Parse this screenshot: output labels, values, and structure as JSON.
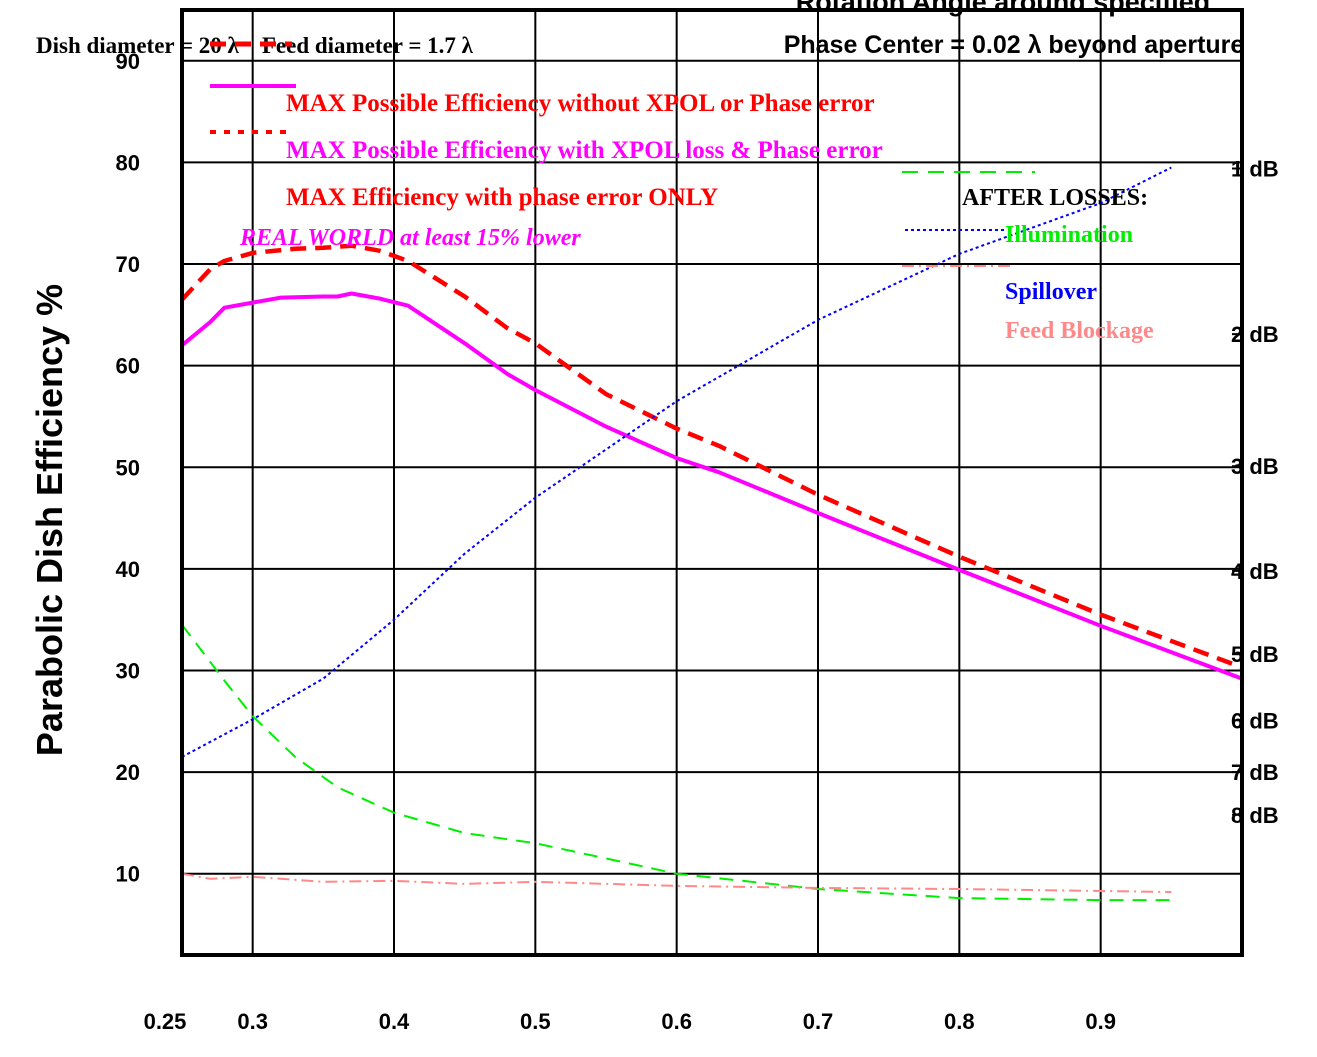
{
  "chart_data": {
    "type": "line",
    "title": "Rotation Angle around specified",
    "title_line2": "Phase Center = 0.02 λ beyond aperture",
    "subtitle": "Dish diameter = 20 λ    Feed diameter = 1.7 λ",
    "ylabel": "Parabolic Dish Efficiency %",
    "xlabel": "",
    "xlim": [
      0.25,
      1.0
    ],
    "ylim": [
      2,
      95
    ],
    "grid": true,
    "x_ticks": [
      0.25,
      0.3,
      0.4,
      0.5,
      0.6,
      0.7,
      0.8,
      0.9
    ],
    "x_tick_labels": [
      "0.25",
      "0.3",
      "0.4",
      "0.5",
      "0.6",
      "0.7",
      "0.8",
      "0.9"
    ],
    "y_ticks": [
      10,
      20,
      30,
      40,
      50,
      60,
      70,
      80,
      90
    ],
    "y_tick_labels": [
      "10",
      "20",
      "30",
      "40",
      "50",
      "60",
      "70",
      "80",
      "90"
    ],
    "right_axis_labels": [
      {
        "label": "1 dB",
        "y": 79.4
      },
      {
        "label": "2 dB",
        "y": 63.1
      },
      {
        "label": "3 dB",
        "y": 50.1
      },
      {
        "label": "4 dB",
        "y": 39.8
      },
      {
        "label": "5 dB",
        "y": 31.6
      },
      {
        "label": "6 dB",
        "y": 25.1
      },
      {
        "label": "7 dB",
        "y": 20.0
      },
      {
        "label": "8 dB",
        "y": 15.8
      }
    ],
    "legend_top": [
      {
        "text": "MAX Possible Efficiency without XPOL or Phase error",
        "color": "#ff0000"
      },
      {
        "text": "MAX Possible Efficiency with XPOL loss & Phase error",
        "color": "#ff00ff"
      },
      {
        "text": "MAX Efficiency with phase error ONLY",
        "color": "#ff0000"
      }
    ],
    "real_world_note": "REAL WORLD at least 15% lower",
    "losses_heading": "AFTER LOSSES:",
    "losses_legend": [
      {
        "text": "Illumination",
        "color": "#00ee00"
      },
      {
        "text": "Spillover",
        "color": "#0000ff"
      },
      {
        "text": "Feed Blockage",
        "color": "#ff8888"
      }
    ],
    "series": [
      {
        "key": "phase_only",
        "color": "#ff0000",
        "dash": "16,9",
        "width": 4.5,
        "x": [
          0.25,
          0.27,
          0.28,
          0.3,
          0.33,
          0.35,
          0.37,
          0.39,
          0.41,
          0.45,
          0.48,
          0.5,
          0.55,
          0.6,
          0.63,
          0.7,
          0.8,
          0.9,
          1.0
        ],
        "y": [
          66.5,
          69.5,
          70.3,
          71.1,
          71.5,
          71.6,
          71.8,
          71.3,
          70.3,
          66.8,
          63.7,
          62.2,
          57.2,
          53.8,
          52.1,
          47.3,
          41.2,
          35.5,
          30.3
        ]
      },
      {
        "key": "xpol_phase",
        "color": "#ff00ff",
        "dash": "",
        "width": 4,
        "x": [
          0.25,
          0.27,
          0.28,
          0.3,
          0.32,
          0.35,
          0.36,
          0.37,
          0.39,
          0.41,
          0.45,
          0.48,
          0.5,
          0.55,
          0.6,
          0.63,
          0.7,
          0.8,
          0.9,
          1.0
        ],
        "y": [
          62.0,
          64.3,
          65.7,
          66.2,
          66.7,
          66.8,
          66.8,
          67.1,
          66.6,
          65.9,
          62.2,
          59.2,
          57.6,
          54.0,
          50.9,
          49.5,
          45.5,
          39.9,
          34.4,
          29.2
        ]
      },
      {
        "key": "illumination",
        "color": "#00ee00",
        "dash": "14,9",
        "width": 2,
        "x": [
          0.25,
          0.28,
          0.3,
          0.33,
          0.36,
          0.4,
          0.45,
          0.5,
          0.6,
          0.7,
          0.8,
          0.9,
          0.95
        ],
        "y": [
          34.5,
          29.0,
          25.5,
          21.5,
          18.5,
          16.0,
          14.0,
          13.0,
          10.0,
          8.5,
          7.6,
          7.4,
          7.4
        ]
      },
      {
        "key": "spillover",
        "color": "#0000ff",
        "dash": "3,3",
        "width": 2,
        "x": [
          0.25,
          0.3,
          0.35,
          0.4,
          0.45,
          0.5,
          0.6,
          0.7,
          0.8,
          0.9,
          0.95
        ],
        "y": [
          21.5,
          25.2,
          29.2,
          35.0,
          41.5,
          47.0,
          56.5,
          64.5,
          71.0,
          76.0,
          79.5
        ]
      },
      {
        "key": "feed_blockage",
        "color": "#ff8888",
        "dash": "12,5,2,5",
        "width": 2,
        "x": [
          0.25,
          0.27,
          0.3,
          0.35,
          0.4,
          0.45,
          0.5,
          0.6,
          0.7,
          0.8,
          0.9,
          0.95
        ],
        "y": [
          10.0,
          9.5,
          9.7,
          9.2,
          9.3,
          9.0,
          9.2,
          8.8,
          8.6,
          8.5,
          8.3,
          8.2
        ]
      }
    ]
  }
}
